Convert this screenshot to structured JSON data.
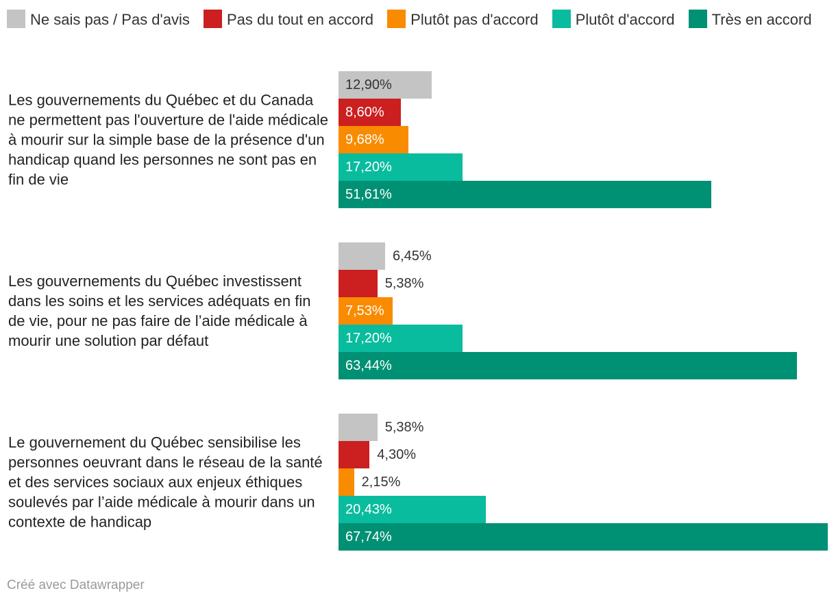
{
  "chart_data": {
    "type": "bar",
    "orientation": "horizontal",
    "title": "",
    "legend_position": "top",
    "xlim": [
      0,
      67.74
    ],
    "categories": [
      "Les gouvernements du Québec et du Canada ne permettent pas l'ouverture de l'aide médicale à mourir sur la simple base de la présence d'un handicap quand les personnes ne sont pas en fin de vie",
      "Les gouvernements du Québec investissent dans les soins et les services adéquats en fin de vie, pour ne pas faire de l’aide médicale à mourir une solution par défaut",
      "Le gouvernement du Québec sensibilise les personnes oeuvrant dans le réseau de la santé et des services sociaux aux enjeux éthiques soulevés par l’aide médicale à mourir dans un contexte de handicap"
    ],
    "series": [
      {
        "name": "Ne sais pas / Pas d'avis",
        "color": "#c4c4c4",
        "values": [
          12.9,
          6.45,
          5.38
        ],
        "labels": [
          "12,90%",
          "6,45%",
          "5,38%"
        ]
      },
      {
        "name": "Pas du tout en accord",
        "color": "#cc1f1f",
        "values": [
          8.6,
          5.38,
          4.3
        ],
        "labels": [
          "8,60%",
          "5,38%",
          "4,30%"
        ]
      },
      {
        "name": "Plutôt pas d'accord",
        "color": "#f98b00",
        "values": [
          9.68,
          7.53,
          2.15
        ],
        "labels": [
          "9,68%",
          "7,53%",
          "2,15%"
        ]
      },
      {
        "name": "Plutôt d'accord",
        "color": "#09bc9e",
        "values": [
          17.2,
          17.2,
          20.43
        ],
        "labels": [
          "17,20%",
          "17,20%",
          "20,43%"
        ]
      },
      {
        "name": "Très en accord",
        "color": "#009074",
        "values": [
          51.61,
          63.44,
          67.74
        ],
        "labels": [
          "51,61%",
          "63,44%",
          "67,74%"
        ]
      }
    ]
  },
  "footer": "Créé avec Datawrapper"
}
